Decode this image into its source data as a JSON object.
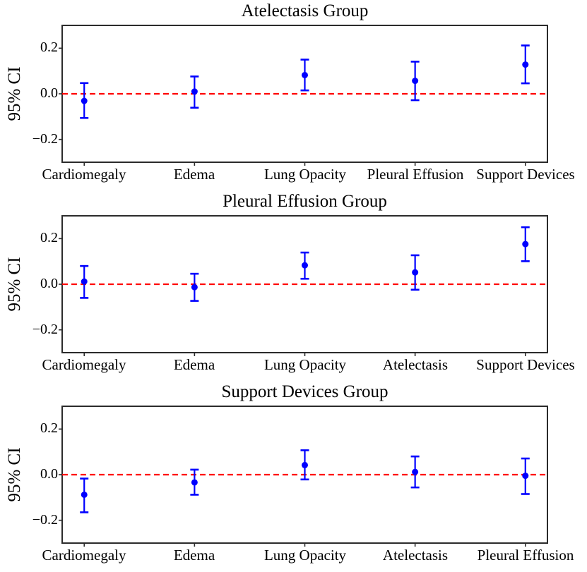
{
  "figure": {
    "background": "#ffffff",
    "accent_blue": "#0000ff",
    "zero_line_red": "#ff0000",
    "spine_color": "#2b2b2b",
    "text_color": "#000000",
    "ylabel": "95% CI",
    "ytick_labels": [
      "0.2",
      "0.0",
      "−0.2"
    ],
    "ytick_values": [
      0.2,
      0.0,
      -0.2
    ]
  },
  "chart_data": [
    {
      "type": "scatter",
      "style": "errorbar-95ci",
      "title": "Atelectasis Group",
      "ylabel": "95% CI",
      "xlabel": "",
      "ylim": [
        -0.3,
        0.3
      ],
      "yticks": [
        0.2,
        0.0,
        -0.2
      ],
      "grid": false,
      "zero_line_y": 0,
      "legend": "none",
      "categories": [
        "Cardiomegaly",
        "Edema",
        "Lung Opacity",
        "Pleural Effusion",
        "Support Devices"
      ],
      "values": [
        -0.031,
        0.01,
        0.082,
        0.057,
        0.128
      ],
      "ci_lower": [
        -0.106,
        -0.061,
        0.015,
        -0.028,
        0.046
      ],
      "ci_upper": [
        0.047,
        0.076,
        0.15,
        0.141,
        0.212
      ]
    },
    {
      "type": "scatter",
      "style": "errorbar-95ci",
      "title": "Pleural Effusion Group",
      "ylabel": "95% CI",
      "xlabel": "",
      "ylim": [
        -0.3,
        0.3
      ],
      "yticks": [
        0.2,
        0.0,
        -0.2
      ],
      "grid": false,
      "zero_line_y": 0,
      "legend": "none",
      "categories": [
        "Cardiomegaly",
        "Edema",
        "Lung Opacity",
        "Atelectasis",
        "Support Devices"
      ],
      "values": [
        0.012,
        -0.013,
        0.083,
        0.052,
        0.176
      ],
      "ci_lower": [
        -0.06,
        -0.073,
        0.024,
        -0.024,
        0.101
      ],
      "ci_upper": [
        0.08,
        0.046,
        0.139,
        0.127,
        0.25
      ]
    },
    {
      "type": "scatter",
      "style": "errorbar-95ci",
      "title": "Support Devices Group",
      "ylabel": "95% CI",
      "xlabel": "",
      "ylim": [
        -0.3,
        0.3
      ],
      "yticks": [
        0.2,
        0.0,
        -0.2
      ],
      "grid": false,
      "zero_line_y": 0,
      "legend": "none",
      "categories": [
        "Cardiomegaly",
        "Edema",
        "Lung Opacity",
        "Atelectasis",
        "Pleural Effusion"
      ],
      "values": [
        -0.088,
        -0.034,
        0.042,
        0.012,
        -0.005
      ],
      "ci_lower": [
        -0.165,
        -0.088,
        -0.021,
        -0.056,
        -0.085
      ],
      "ci_upper": [
        -0.017,
        0.022,
        0.107,
        0.08,
        0.071
      ]
    }
  ]
}
